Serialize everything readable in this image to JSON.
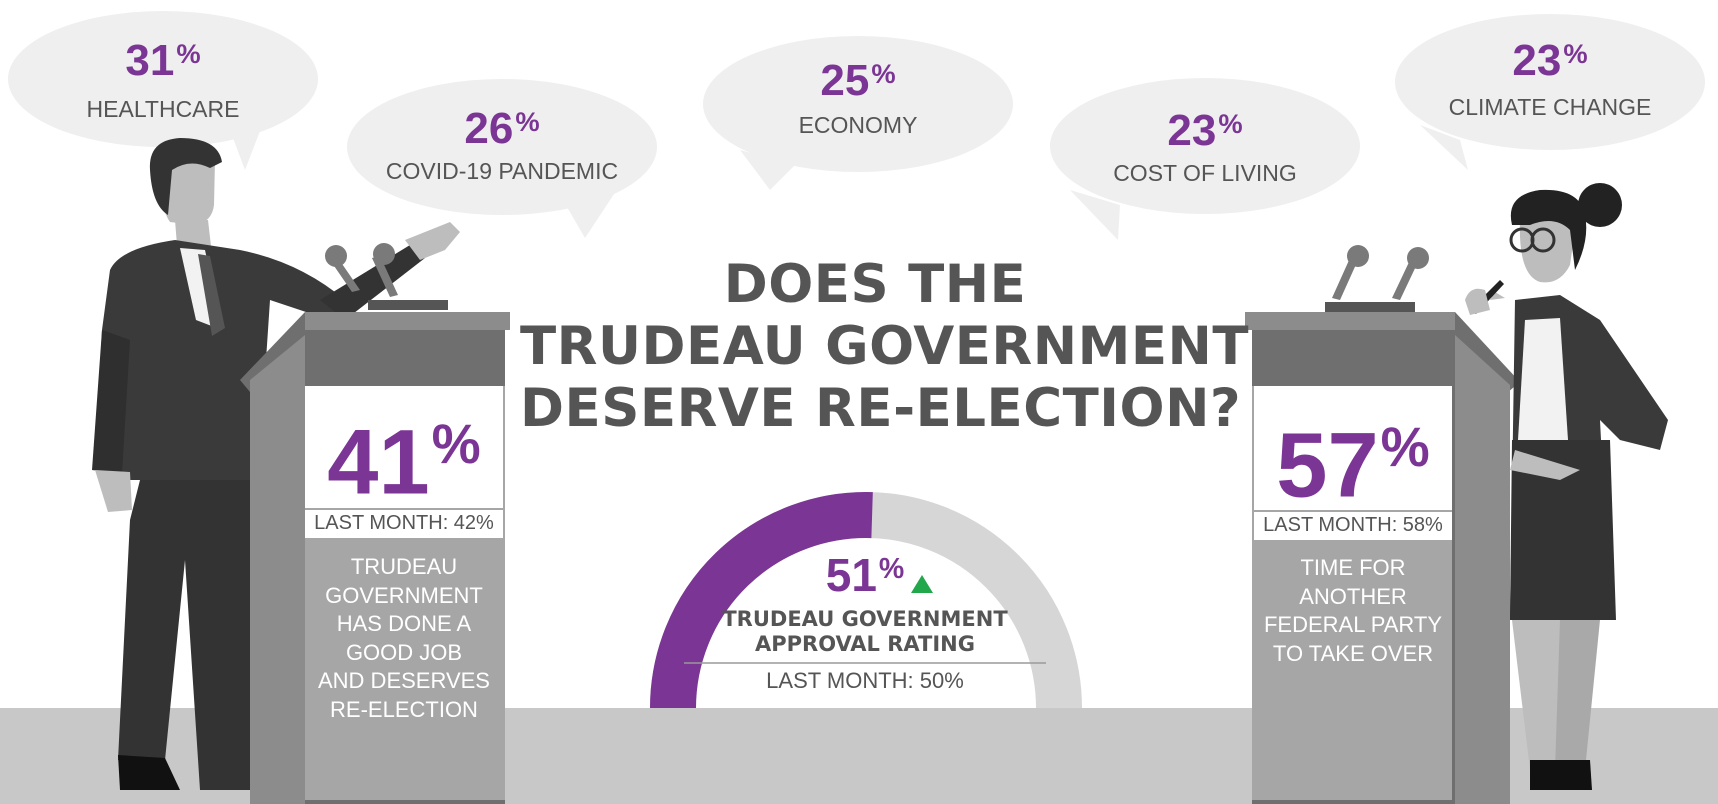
{
  "chart_data": {
    "type": "gauge",
    "title": "DOES THE TRUDEAU GOVERNMENT DESERVE RE-ELECTION?",
    "title_lines": [
      "DOES THE",
      "TRUDEAU GOVERNMENT",
      "DESERVE RE-ELECTION?"
    ],
    "issues": [
      {
        "label": "HEALTHCARE",
        "value": 31
      },
      {
        "label": "COVID-19 PANDEMIC",
        "value": 26
      },
      {
        "label": "ECONOMY",
        "value": 25
      },
      {
        "label": "COST OF LIVING",
        "value": 23
      },
      {
        "label": "CLIMATE CHANGE",
        "value": 23
      }
    ],
    "reelection": {
      "value": 41,
      "last_month": "LAST MONTH: 42%",
      "text_lines": [
        "TRUDEAU",
        "GOVERNMENT",
        "HAS DONE A",
        "GOOD JOB",
        "AND DESERVES",
        "RE-ELECTION"
      ]
    },
    "another_party": {
      "value": 57,
      "last_month": "LAST MONTH: 58%",
      "text_lines": [
        "TIME FOR",
        "ANOTHER",
        "FEDERAL PARTY",
        "TO TAKE OVER"
      ]
    },
    "approval": {
      "value": 51,
      "trend": "up",
      "label_lines": [
        "TRUDEAU GOVERNMENT",
        "APPROVAL RATING"
      ],
      "last_month": "LAST MONTH: 50%"
    },
    "colors": {
      "accent": "#7b3594",
      "gauge_track": "#d6d6d6",
      "trend_up": "#22a84a",
      "text": "#555555"
    },
    "percent_sign": "%"
  }
}
